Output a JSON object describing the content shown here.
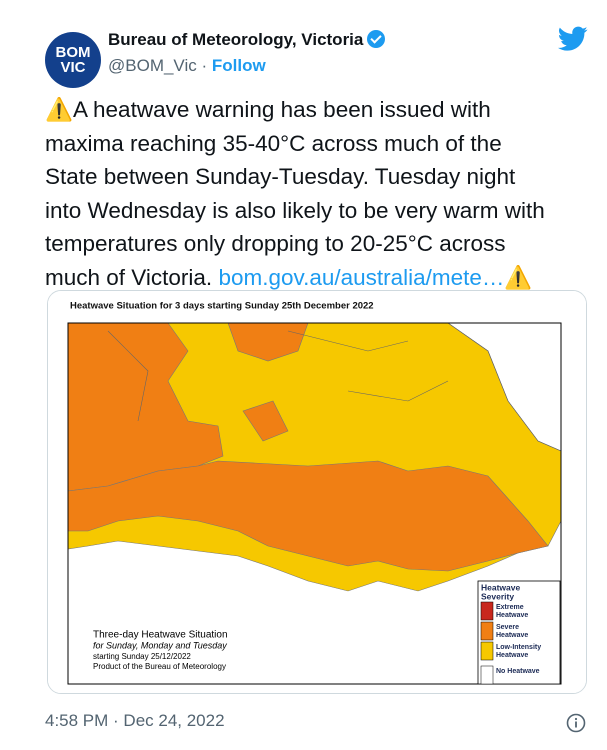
{
  "author": {
    "avatar_lines": [
      "BOM",
      "VIC"
    ],
    "name": "Bureau of Meteorology, Victoria",
    "handle": "@BOM_Vic",
    "separator": "·",
    "follow": "Follow"
  },
  "tweet": {
    "icon": "⚠️",
    "lines": [
      "A heatwave warning has been issued with",
      "maxima reaching 35-40°C across much of the",
      "State between Sunday-Tuesday. Tuesday night",
      "into Wednesday is also likely to be very warm with",
      "temperatures only dropping to 20-25°C across",
      "much of Victoria."
    ],
    "link": "bom.gov.au/australia/mete…"
  },
  "map": {
    "title": "Heatwave Situation for 3 days starting Sunday 25th December 2022",
    "legend": {
      "title": [
        "Heatwave",
        "Severity"
      ],
      "items": [
        {
          "label": [
            "Extreme",
            "Heatwave"
          ],
          "color": "#c8281e"
        },
        {
          "label": [
            "Severe",
            "Heatwave"
          ],
          "color": "#f07f14"
        },
        {
          "label": [
            "Low-Intensity",
            "Heatwave"
          ],
          "color": "#f6c800"
        },
        {
          "label": [
            "No Heatwave"
          ],
          "color": "#ffffff"
        }
      ]
    },
    "note": {
      "title": "Three-day Heatwave Situation",
      "subtitle": "for Sunday, Monday and Tuesday",
      "lines": [
        "starting Sunday 25/12/2022",
        "Product of the Bureau of Meteorology"
      ]
    }
  },
  "timestamp": "4:58 PM · Dec 24, 2022"
}
